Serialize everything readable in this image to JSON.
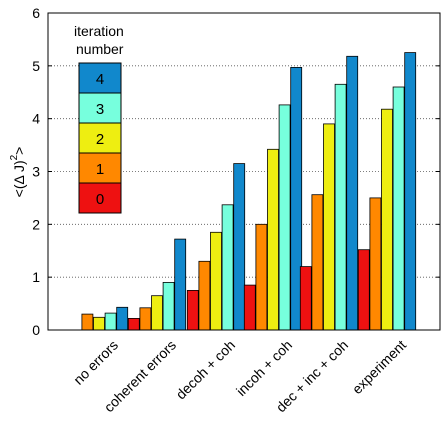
{
  "chart_data": {
    "type": "bar",
    "title": "",
    "xlabel": "",
    "ylabel": "<(Δ J)",
    "ylabel_superscript": "2",
    "ylabel_suffix": ">",
    "ylim": [
      0,
      6
    ],
    "yticks": [
      0,
      1,
      2,
      3,
      4,
      5,
      6
    ],
    "grid": "horizontal dotted",
    "categories": [
      "no errors",
      "coherent errors",
      "decoh + coh",
      "incoh + coh",
      "dec + inc + coh",
      "experiment"
    ],
    "series": [
      {
        "name": "0",
        "color": "#ee1111",
        "values": [
          0,
          0.22,
          0.75,
          0.85,
          1.2,
          1.52
        ]
      },
      {
        "name": "1",
        "color": "#ff8800",
        "values": [
          0.3,
          0.42,
          1.3,
          2.0,
          2.56,
          2.5
        ]
      },
      {
        "name": "2",
        "color": "#eeee11",
        "values": [
          0.24,
          0.65,
          1.85,
          3.42,
          3.9,
          4.18
        ]
      },
      {
        "name": "3",
        "color": "#77ffdd",
        "values": [
          0.32,
          0.9,
          2.37,
          4.26,
          4.65,
          4.6
        ]
      },
      {
        "name": "4",
        "color": "#1188cc",
        "values": [
          0.43,
          1.72,
          3.15,
          4.97,
          5.18,
          5.25
        ]
      }
    ],
    "legend": {
      "title_line1": "iteration",
      "title_line2": "number",
      "placement": "top-left",
      "entries": [
        "4",
        "3",
        "2",
        "1",
        "0"
      ]
    }
  }
}
